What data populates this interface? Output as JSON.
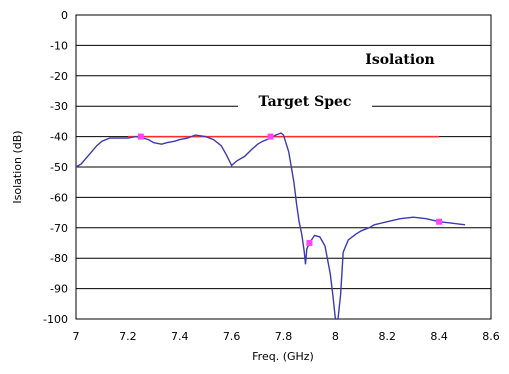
{
  "chart_data": {
    "type": "line",
    "xlabel": "Freq. (GHz)",
    "ylabel": "Isolation (dB)",
    "xlim": [
      7,
      8.6
    ],
    "ylim": [
      -100,
      0
    ],
    "xticks": [
      7,
      7.2,
      7.4,
      7.6,
      7.8,
      8,
      8.2,
      8.4,
      8.6
    ],
    "yticks": [
      0,
      -10,
      -20,
      -30,
      -40,
      -50,
      -60,
      -70,
      -80,
      -90,
      -100
    ],
    "grid": "horizontal",
    "annotations": {
      "isolation": "Isolation",
      "target": "Target Spec"
    },
    "colors": {
      "series": "#3b3bb0",
      "spec": "#ff2a2a",
      "markers": "#ff44ff"
    },
    "spec_line": {
      "x": [
        7.2,
        8.4
      ],
      "y": -40
    },
    "series": [
      {
        "x": [
          7.0,
          7.02,
          7.05,
          7.08,
          7.1,
          7.13,
          7.15,
          7.18,
          7.2,
          7.23,
          7.25,
          7.28,
          7.3,
          7.33,
          7.35,
          7.38,
          7.4,
          7.43,
          7.46,
          7.5,
          7.53,
          7.56,
          7.58,
          7.6,
          7.62,
          7.65,
          7.68,
          7.7,
          7.72,
          7.75,
          7.77,
          7.79,
          7.8,
          7.82,
          7.84,
          7.85,
          7.86,
          7.87,
          7.88,
          7.885,
          7.89,
          7.9,
          7.92,
          7.94,
          7.96,
          7.98,
          7.99,
          8.0,
          8.01,
          8.02,
          8.03,
          8.05,
          8.08,
          8.1,
          8.13,
          8.15,
          8.2,
          8.25,
          8.3,
          8.35,
          8.4,
          8.45,
          8.5
        ],
        "y": [
          -50,
          -49,
          -46,
          -43,
          -41.5,
          -40.5,
          -40.5,
          -40.5,
          -40.5,
          -40,
          -40.3,
          -41,
          -42,
          -42.5,
          -42,
          -41.5,
          -41,
          -40.5,
          -39.5,
          -40,
          -41,
          -43,
          -46,
          -49.5,
          -48,
          -46.5,
          -44,
          -42.5,
          -41.5,
          -40.5,
          -39.5,
          -38.8,
          -39.5,
          -45,
          -55,
          -62,
          -68,
          -72,
          -78,
          -82,
          -77,
          -75,
          -72.5,
          -73,
          -76,
          -85,
          -92,
          -100,
          -100,
          -92,
          -78,
          -74,
          -72,
          -71,
          -70,
          -69,
          -68,
          -67,
          -66.5,
          -67,
          -68,
          -68.5,
          -69
        ]
      }
    ],
    "markers": [
      {
        "x": 7.25,
        "y": -40
      },
      {
        "x": 7.75,
        "y": -40
      },
      {
        "x": 7.9,
        "y": -75
      },
      {
        "x": 8.4,
        "y": -68
      }
    ]
  }
}
